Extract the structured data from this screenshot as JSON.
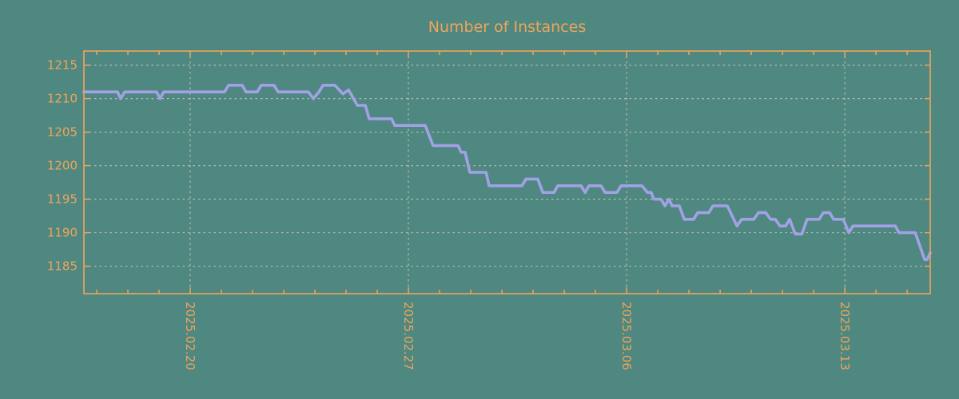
{
  "title": "Number of Instances",
  "colors": {
    "background": "#4e8880",
    "axis": "#f0a45c",
    "text": "#f0a45c",
    "grid": "#b7bbb3",
    "line": "#a2a1e6"
  },
  "chart_data": {
    "type": "line",
    "title": "Number of Instances",
    "legend": "none",
    "grid": "dotted",
    "x_axis": {
      "unit": "days since 2025-02-20",
      "tick_labels": [
        "2025.02.20",
        "2025.02.27",
        "2025.03.06",
        "2025.03.13"
      ],
      "tick_positions_days": [
        0,
        7,
        14,
        21
      ],
      "minor_tick_interval_days": 1,
      "xlim_days": [
        -3.41,
        23.74
      ]
    },
    "y_axis": {
      "tick_values": [
        1215,
        1210,
        1205,
        1200,
        1195,
        1190,
        1185
      ],
      "ylim": [
        1180.9,
        1217.1
      ]
    },
    "series": [
      {
        "name": "instances",
        "color": "#a2a1e6",
        "points": [
          [
            -3.41,
            1211
          ],
          [
            -2.33,
            1211
          ],
          [
            -2.23,
            1210
          ],
          [
            -2.1,
            1211
          ],
          [
            -1.08,
            1211
          ],
          [
            -0.97,
            1210
          ],
          [
            -0.85,
            1211
          ],
          [
            1.1,
            1211
          ],
          [
            1.23,
            1212
          ],
          [
            1.67,
            1212
          ],
          [
            1.79,
            1211
          ],
          [
            2.15,
            1211
          ],
          [
            2.28,
            1212
          ],
          [
            2.69,
            1212
          ],
          [
            2.82,
            1211
          ],
          [
            3.79,
            1211
          ],
          [
            3.95,
            1210
          ],
          [
            4.13,
            1211
          ],
          [
            4.26,
            1212
          ],
          [
            4.64,
            1212
          ],
          [
            4.9,
            1210.7
          ],
          [
            5.08,
            1211.3
          ],
          [
            5.36,
            1209
          ],
          [
            5.62,
            1209
          ],
          [
            5.74,
            1207
          ],
          [
            6.46,
            1207
          ],
          [
            6.56,
            1206
          ],
          [
            7.54,
            1206
          ],
          [
            7.79,
            1203
          ],
          [
            8.59,
            1203
          ],
          [
            8.69,
            1202
          ],
          [
            8.82,
            1202
          ],
          [
            8.97,
            1199
          ],
          [
            9.49,
            1199
          ],
          [
            9.59,
            1197
          ],
          [
            10.64,
            1197
          ],
          [
            10.77,
            1198
          ],
          [
            11.15,
            1198
          ],
          [
            11.31,
            1196
          ],
          [
            11.67,
            1196
          ],
          [
            11.79,
            1197
          ],
          [
            12.54,
            1197
          ],
          [
            12.67,
            1196
          ],
          [
            12.79,
            1197
          ],
          [
            13.18,
            1197
          ],
          [
            13.31,
            1196
          ],
          [
            13.69,
            1196
          ],
          [
            13.82,
            1197
          ],
          [
            14.49,
            1197
          ],
          [
            14.67,
            1196
          ],
          [
            14.79,
            1196
          ],
          [
            14.87,
            1195
          ],
          [
            15.1,
            1195
          ],
          [
            15.23,
            1194
          ],
          [
            15.36,
            1195
          ],
          [
            15.46,
            1194
          ],
          [
            15.69,
            1194
          ],
          [
            15.85,
            1192
          ],
          [
            16.15,
            1192
          ],
          [
            16.28,
            1193
          ],
          [
            16.64,
            1193
          ],
          [
            16.77,
            1194
          ],
          [
            17.23,
            1194
          ],
          [
            17.54,
            1191
          ],
          [
            17.69,
            1192
          ],
          [
            18.08,
            1192
          ],
          [
            18.23,
            1193
          ],
          [
            18.46,
            1193
          ],
          [
            18.62,
            1192
          ],
          [
            18.77,
            1192
          ],
          [
            18.92,
            1191
          ],
          [
            19.1,
            1191
          ],
          [
            19.23,
            1192
          ],
          [
            19.41,
            1189.8
          ],
          [
            19.62,
            1189.8
          ],
          [
            19.79,
            1192
          ],
          [
            20.18,
            1192
          ],
          [
            20.31,
            1193
          ],
          [
            20.51,
            1193
          ],
          [
            20.64,
            1192
          ],
          [
            20.95,
            1192
          ],
          [
            21.13,
            1190
          ],
          [
            21.26,
            1191
          ],
          [
            22.62,
            1191
          ],
          [
            22.74,
            1190
          ],
          [
            23.26,
            1190
          ],
          [
            23.56,
            1186
          ],
          [
            23.64,
            1186
          ],
          [
            23.74,
            1187
          ]
        ]
      }
    ]
  }
}
